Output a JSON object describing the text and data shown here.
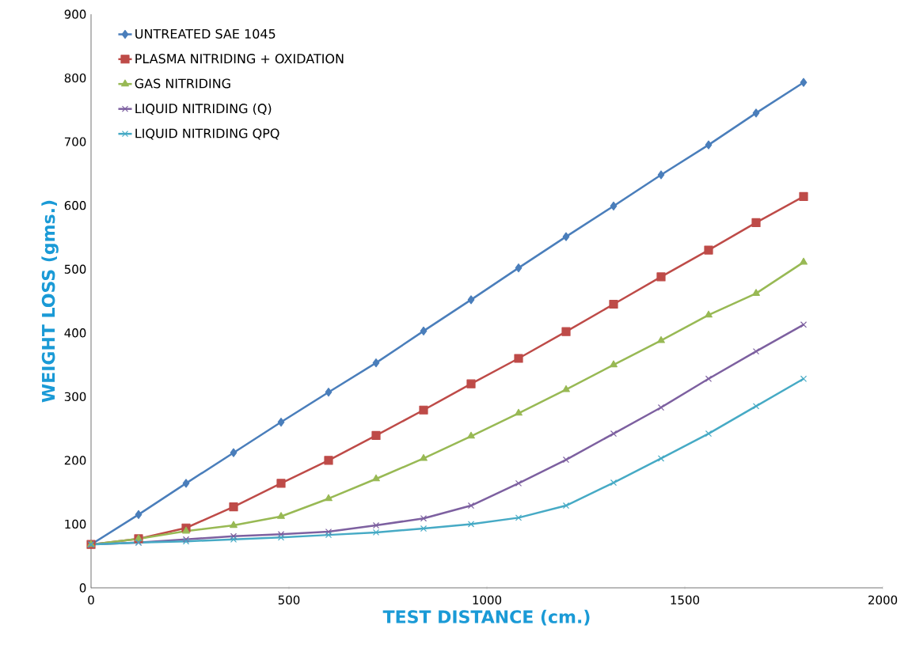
{
  "chart_data": {
    "type": "line",
    "xlabel": "TEST DISTANCE (cm.)",
    "ylabel": "WEIGHT LOSS (gms.)",
    "x": [
      0,
      120,
      240,
      360,
      480,
      600,
      720,
      840,
      960,
      1080,
      1200,
      1320,
      1440,
      1560,
      1680,
      1800
    ],
    "xlim": [
      0,
      2000
    ],
    "xticks": [
      0,
      500,
      1000,
      1500,
      2000
    ],
    "ylim": [
      0,
      900
    ],
    "yticks": [
      0,
      100,
      200,
      300,
      400,
      500,
      600,
      700,
      800,
      900
    ],
    "legend": "top left",
    "line_style": "solid",
    "series": [
      {
        "name": "UNTREATED SAE 1045",
        "color": "#4a7ebb",
        "marker": "diamond",
        "values": [
          68,
          115,
          164,
          212,
          260,
          307,
          353,
          403,
          452,
          502,
          551,
          599,
          648,
          695,
          745,
          793
        ]
      },
      {
        "name": "PLASMA NITRIDING + OXIDATION",
        "color": "#be4b48",
        "marker": "square",
        "values": [
          68,
          77,
          94,
          127,
          164,
          200,
          239,
          279,
          320,
          360,
          402,
          445,
          488,
          530,
          573,
          614
        ]
      },
      {
        "name": "GAS NITRIDING",
        "color": "#98b954",
        "marker": "triangle",
        "values": [
          68,
          77,
          89,
          98,
          112,
          140,
          171,
          203,
          238,
          274,
          311,
          350,
          388,
          428,
          462,
          511
        ]
      },
      {
        "name": "LIQUID NITRIDING (Q)",
        "color": "#7d60a0",
        "marker": "cross",
        "values": [
          68,
          71,
          76,
          81,
          84,
          88,
          98,
          109,
          129,
          164,
          201,
          242,
          283,
          328,
          371,
          413
        ]
      },
      {
        "name": "LIQUID NITRIDING QPQ",
        "color": "#46aac5",
        "marker": "cross",
        "values": [
          68,
          71,
          73,
          76,
          79,
          83,
          87,
          93,
          100,
          110,
          129,
          165,
          203,
          242,
          285,
          328
        ]
      }
    ]
  }
}
